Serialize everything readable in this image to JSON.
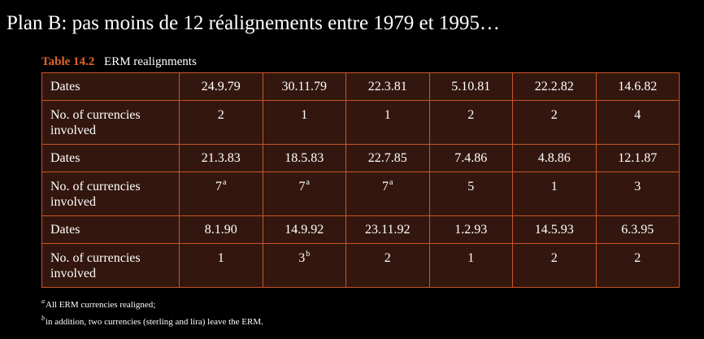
{
  "slide": {
    "title": "Plan B:  pas moins de 12 réalignements entre 1979 et 1995…"
  },
  "table": {
    "number": "Table 14.2",
    "caption": "ERM realignments",
    "row_labels": {
      "dates": "Dates",
      "currencies": "No. of currencies involved"
    },
    "blocks": [
      {
        "dates": [
          "24.9.79",
          "30.11.79",
          "22.3.81",
          "5.10.81",
          "22.2.82",
          "14.6.82"
        ],
        "counts": [
          {
            "value": "2",
            "note": ""
          },
          {
            "value": "1",
            "note": ""
          },
          {
            "value": "1",
            "note": ""
          },
          {
            "value": "2",
            "note": ""
          },
          {
            "value": "2",
            "note": ""
          },
          {
            "value": "4",
            "note": ""
          }
        ]
      },
      {
        "dates": [
          "21.3.83",
          "18.5.83",
          "22.7.85",
          "7.4.86",
          "4.8.86",
          "12.1.87"
        ],
        "counts": [
          {
            "value": "7",
            "note": "a"
          },
          {
            "value": "7",
            "note": "a"
          },
          {
            "value": "7",
            "note": "a"
          },
          {
            "value": "5",
            "note": ""
          },
          {
            "value": "1",
            "note": ""
          },
          {
            "value": "3",
            "note": ""
          }
        ]
      },
      {
        "dates": [
          "8.1.90",
          "14.9.92",
          "23.11.92",
          "1.2.93",
          "14.5.93",
          "6.3.95"
        ],
        "counts": [
          {
            "value": "1",
            "note": ""
          },
          {
            "value": "3",
            "note": "b"
          },
          {
            "value": "2",
            "note": ""
          },
          {
            "value": "1",
            "note": ""
          },
          {
            "value": "2",
            "note": ""
          },
          {
            "value": "2",
            "note": ""
          }
        ]
      }
    ]
  },
  "footnotes": {
    "a_mark": "a",
    "a_text": "All ERM currencies realigned;",
    "b_mark": "b",
    "b_text": "in addition, two currencies (sterling and lira) leave the ERM."
  },
  "colors": {
    "background": "#000000",
    "table_fill": "#33170e",
    "table_border": "#c9552b",
    "caption_accent": "#e2622a",
    "text": "#ffffff"
  }
}
